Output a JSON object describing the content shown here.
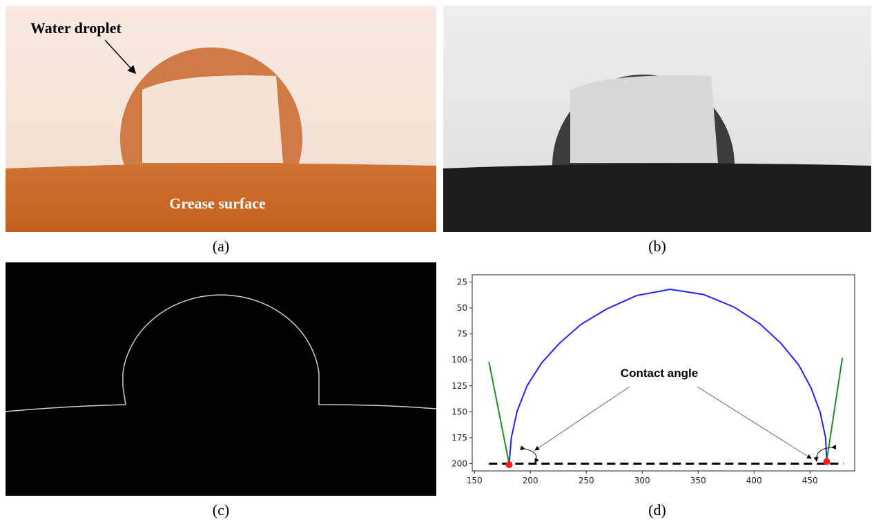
{
  "panels": {
    "a": {
      "label": "(a)",
      "droplet_label": "Water droplet",
      "surface_label": "Grease surface"
    },
    "b": {
      "label": "(b)"
    },
    "c": {
      "label": "(c)"
    },
    "d": {
      "label": "(d)"
    }
  },
  "chart_data": {
    "type": "line",
    "annotation": "Contact angle",
    "xlim": [
      148,
      490
    ],
    "ylim": [
      18,
      207
    ],
    "y_inverted": true,
    "xticks": [
      150,
      200,
      250,
      300,
      350,
      400,
      450
    ],
    "yticks": [
      25,
      50,
      75,
      100,
      125,
      150,
      175,
      200
    ],
    "series": [
      {
        "color": "#2020ff",
        "style": "line",
        "x": [
          181,
          183,
          188,
          197,
          210,
          226,
          245,
          268,
          295,
          325,
          355,
          382,
          405,
          424,
          440,
          451,
          459,
          464,
          465
        ],
        "values": [
          200,
          175,
          150,
          125,
          103,
          84,
          66,
          51,
          38,
          32,
          37,
          49,
          65,
          84,
          105,
          127,
          150,
          175,
          198
        ]
      },
      {
        "color": "#1e8c1e",
        "style": "line",
        "x": [
          163,
          181
        ],
        "values": [
          102,
          200
        ]
      },
      {
        "color": "#1e8c1e",
        "style": "line",
        "x": [
          479,
          465
        ],
        "values": [
          98,
          197
        ]
      },
      {
        "color": "#000000",
        "style": "dashed",
        "x": [
          163,
          480
        ],
        "values": [
          200,
          200
        ]
      },
      {
        "color": "#ff1a1a",
        "style": "points",
        "x": [
          181,
          465
        ],
        "values": [
          201,
          198
        ]
      }
    ]
  }
}
